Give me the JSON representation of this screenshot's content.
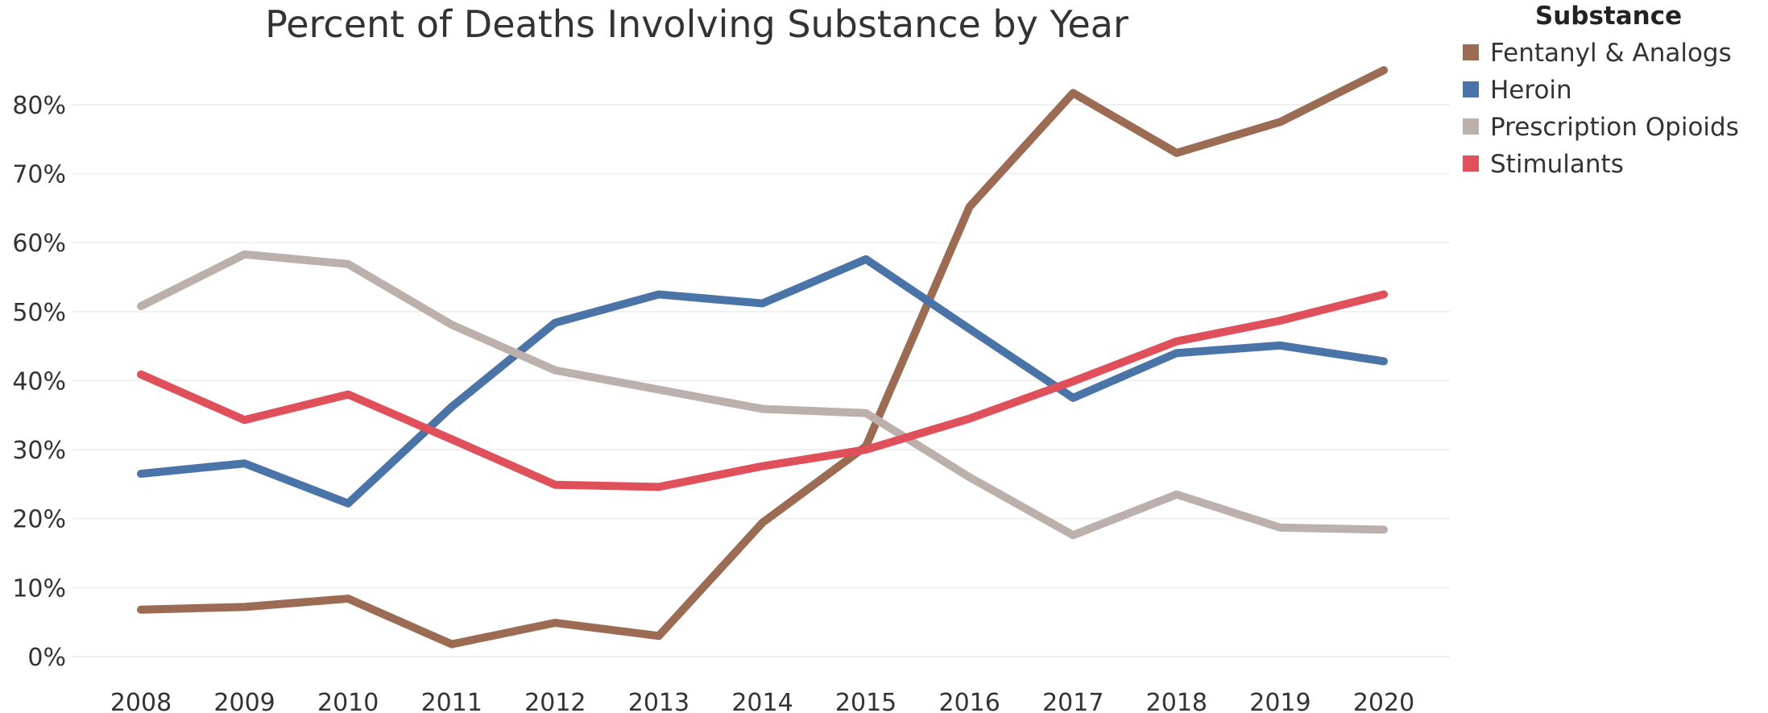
{
  "chart_data": {
    "type": "line",
    "title": "Percent of Deaths Involving Substance by Year",
    "xlabel": "",
    "ylabel": "",
    "x": [
      "2008",
      "2009",
      "2010",
      "2011",
      "2012",
      "2013",
      "2014",
      "2015",
      "2016",
      "2017",
      "2018",
      "2019",
      "2020"
    ],
    "ylim": [
      0,
      0.87
    ],
    "yticks": [
      {
        "value": 0.0,
        "label": "0%"
      },
      {
        "value": 0.1,
        "label": "10%"
      },
      {
        "value": 0.2,
        "label": "20%"
      },
      {
        "value": 0.3,
        "label": "30%"
      },
      {
        "value": 0.4,
        "label": "40%"
      },
      {
        "value": 0.5,
        "label": "50%"
      },
      {
        "value": 0.6,
        "label": "60%"
      },
      {
        "value": 0.7,
        "label": "70%"
      },
      {
        "value": 0.8,
        "label": "80%"
      }
    ],
    "grid": true,
    "legend": {
      "title": "Substance",
      "position": "top-right"
    },
    "series": [
      {
        "name": "Fentanyl & Analogs",
        "color": "#9c6b53",
        "values": [
          0.068,
          0.072,
          0.084,
          0.018,
          0.049,
          0.03,
          0.194,
          0.305,
          0.652,
          0.817,
          0.73,
          0.775,
          0.85
        ]
      },
      {
        "name": "Heroin",
        "color": "#4a74a8",
        "values": [
          0.265,
          0.28,
          0.222,
          0.362,
          0.484,
          0.525,
          0.512,
          0.576,
          0.475,
          0.375,
          0.44,
          0.451,
          0.428
        ]
      },
      {
        "name": "Prescription Opioids",
        "color": "#bbb0ac",
        "values": [
          0.508,
          0.583,
          0.569,
          0.481,
          0.415,
          0.387,
          0.359,
          0.353,
          0.26,
          0.176,
          0.235,
          0.187,
          0.184
        ]
      },
      {
        "name": "Stimulants",
        "color": "#e0505a",
        "values": [
          0.409,
          0.343,
          0.38,
          0.315,
          0.249,
          0.246,
          0.276,
          0.3,
          0.345,
          0.399,
          0.457,
          0.487,
          0.525
        ]
      }
    ]
  }
}
